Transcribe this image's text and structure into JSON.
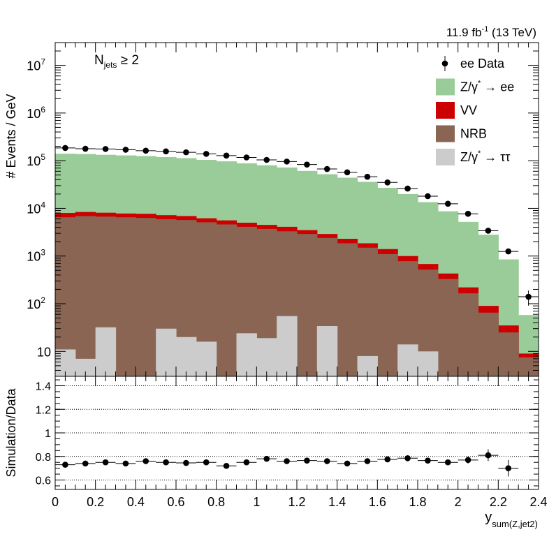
{
  "colors": {
    "zee": "#99cc99",
    "vv": "#cc0000",
    "nrb": "#8a6553",
    "ztt": "#cccccc",
    "data": "#000000"
  },
  "header": {
    "lumi": "11.9 fb",
    "lumi_sup": "-1",
    "energy": " (13 TeV)"
  },
  "chart_data": [
    {
      "type": "stacked-histogram",
      "label_main": "N",
      "label_sub": "jets",
      "label_tail": " ≥ 2",
      "ylabel": "# Events / GeV",
      "yscale": "log",
      "ylim": [
        3,
        30000000
      ],
      "xlim": [
        0,
        2.4
      ],
      "bin_edges": [
        0,
        0.1,
        0.2,
        0.3,
        0.4,
        0.5,
        0.6,
        0.7,
        0.8,
        0.9,
        1.0,
        1.1,
        1.2,
        1.3,
        1.4,
        1.5,
        1.6,
        1.7,
        1.8,
        1.9,
        2.0,
        2.1,
        2.2,
        2.3,
        2.4
      ],
      "y_ticks": [
        {
          "value": 10,
          "base": "10",
          "exp": ""
        },
        {
          "value": 100,
          "base": "10",
          "exp": "2"
        },
        {
          "value": 1000,
          "base": "10",
          "exp": "3"
        },
        {
          "value": 10000,
          "base": "10",
          "exp": "4"
        },
        {
          "value": 100000,
          "base": "10",
          "exp": "5"
        },
        {
          "value": 1000000,
          "base": "10",
          "exp": "6"
        },
        {
          "value": 10000000,
          "base": "10",
          "exp": "7"
        }
      ],
      "stack": [
        {
          "key": "ztt",
          "values": [
            11,
            7,
            32,
            3,
            3,
            30,
            20,
            16,
            3,
            24,
            19,
            55,
            3,
            34,
            3,
            8,
            3,
            14,
            10,
            3,
            3,
            3,
            3,
            3
          ]
        },
        {
          "key": "nrb",
          "values": [
            6500,
            6900,
            6700,
            6500,
            6300,
            5900,
            5700,
            5100,
            4600,
            4100,
            3700,
            3300,
            2900,
            2400,
            1850,
            1500,
            1100,
            780,
            520,
            330,
            165,
            65,
            25,
            7.5
          ]
        },
        {
          "key": "vv",
          "values": [
            8000,
            8400,
            8100,
            7800,
            7700,
            7200,
            6900,
            6200,
            5600,
            5000,
            4500,
            4100,
            3500,
            2900,
            2300,
            1850,
            1400,
            1000,
            680,
            430,
            220,
            90,
            35,
            9
          ]
        },
        {
          "key": "zee",
          "values": [
            140000,
            138000,
            133000,
            129000,
            125000,
            119000,
            113000,
            104000,
            97000,
            88000,
            80000,
            72000,
            61000,
            52000,
            44000,
            36000,
            27000,
            20000,
            13500,
            8700,
            5200,
            2800,
            850,
            58
          ]
        }
      ],
      "data": {
        "x": [
          0.05,
          0.15,
          0.25,
          0.35,
          0.45,
          0.55,
          0.65,
          0.75,
          0.85,
          0.95,
          1.05,
          1.15,
          1.25,
          1.35,
          1.45,
          1.55,
          1.65,
          1.75,
          1.85,
          1.95,
          2.05,
          2.15,
          2.25,
          2.35
        ],
        "y": [
          185000,
          178000,
          176000,
          170000,
          162000,
          157000,
          150000,
          139000,
          128000,
          117000,
          104000,
          96000,
          83000,
          67000,
          57000,
          46000,
          35000,
          26000,
          18000,
          12500,
          7700,
          3400,
          1250,
          140
        ],
        "yerr_frac": [
          0.02,
          0.02,
          0.02,
          0.02,
          0.02,
          0.02,
          0.02,
          0.02,
          0.02,
          0.02,
          0.02,
          0.02,
          0.02,
          0.02,
          0.02,
          0.02,
          0.02,
          0.02,
          0.02,
          0.03,
          0.03,
          0.05,
          0.1,
          0.35
        ]
      },
      "legend": [
        {
          "key": "data",
          "style": "marker",
          "text": "ee Data",
          "sup": "",
          "tail": ""
        },
        {
          "key": "zee",
          "style": "box",
          "text": "Z/γ",
          "sup": "*",
          "tail": " → ee"
        },
        {
          "key": "vv",
          "style": "box",
          "text": "VV",
          "sup": "",
          "tail": ""
        },
        {
          "key": "nrb",
          "style": "box",
          "text": "NRB",
          "sup": "",
          "tail": ""
        },
        {
          "key": "ztt",
          "style": "box",
          "text": "Z/γ",
          "sup": "*",
          "tail": " → ττ"
        }
      ]
    },
    {
      "type": "scatter",
      "ylabel": "Simulation/Data",
      "xlabel_main": "y",
      "xlabel_sub": "sum(Z,jet2)",
      "ylim": [
        0.52,
        1.48
      ],
      "xlim": [
        0,
        2.4
      ],
      "y_ticks": [
        0.6,
        0.8,
        1,
        1.2,
        1.4
      ],
      "y_tick_labels": [
        "0.6",
        "0.8",
        "1",
        "1.2",
        "1.4"
      ],
      "x_ticks": [
        0,
        0.2,
        0.4,
        0.6,
        0.8,
        1,
        1.2,
        1.4,
        1.6,
        1.8,
        2,
        2.2,
        2.4
      ],
      "x_tick_labels": [
        "0",
        "0.2",
        "0.4",
        "0.6",
        "0.8",
        "1",
        "1.2",
        "1.4",
        "1.6",
        "1.8",
        "2",
        "2.2",
        "2.4"
      ],
      "x": [
        0.05,
        0.15,
        0.25,
        0.35,
        0.45,
        0.55,
        0.65,
        0.75,
        0.85,
        0.95,
        1.05,
        1.15,
        1.25,
        1.35,
        1.45,
        1.55,
        1.65,
        1.75,
        1.85,
        1.95,
        2.05,
        2.15,
        2.25
      ],
      "y": [
        0.73,
        0.74,
        0.75,
        0.74,
        0.76,
        0.75,
        0.745,
        0.75,
        0.72,
        0.75,
        0.78,
        0.76,
        0.765,
        0.76,
        0.74,
        0.76,
        0.775,
        0.785,
        0.765,
        0.75,
        0.77,
        0.81,
        0.7
      ],
      "yerr": [
        0.015,
        0.015,
        0.015,
        0.015,
        0.015,
        0.015,
        0.015,
        0.015,
        0.015,
        0.015,
        0.015,
        0.015,
        0.015,
        0.015,
        0.015,
        0.015,
        0.015,
        0.02,
        0.02,
        0.025,
        0.03,
        0.05,
        0.07
      ]
    }
  ]
}
